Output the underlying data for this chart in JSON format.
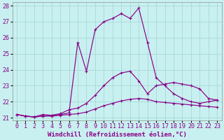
{
  "xlabel": "Windchill (Refroidissement éolien,°C)",
  "ylabel": "",
  "bg_color": "#c8f0f0",
  "grid_color": "#a8d8d8",
  "line_color": "#880088",
  "xlim": [
    -0.5,
    23.5
  ],
  "ylim": [
    20.85,
    28.2
  ],
  "yticks": [
    21,
    22,
    23,
    24,
    25,
    26,
    27,
    28
  ],
  "xticks": [
    0,
    1,
    2,
    3,
    4,
    5,
    6,
    7,
    8,
    9,
    10,
    11,
    12,
    13,
    14,
    15,
    16,
    17,
    18,
    19,
    20,
    21,
    22,
    23
  ],
  "curve1_x": [
    0,
    1,
    2,
    3,
    4,
    5,
    6,
    7,
    8,
    9,
    10,
    11,
    12,
    13,
    14,
    15,
    16,
    17,
    18,
    19,
    20,
    21,
    22,
    23
  ],
  "curve1_y": [
    21.2,
    21.1,
    21.05,
    21.1,
    21.1,
    21.15,
    21.2,
    21.25,
    21.35,
    21.55,
    21.75,
    21.9,
    22.05,
    22.15,
    22.2,
    22.15,
    22.0,
    21.95,
    21.9,
    21.85,
    21.8,
    21.75,
    21.7,
    21.65
  ],
  "curve2_x": [
    0,
    1,
    2,
    3,
    4,
    5,
    6,
    7,
    8,
    9,
    10,
    11,
    12,
    13,
    14,
    15,
    16,
    17,
    18,
    19,
    20,
    21,
    22,
    23
  ],
  "curve2_y": [
    21.2,
    21.1,
    21.05,
    21.2,
    21.15,
    21.25,
    21.5,
    21.6,
    21.9,
    22.4,
    23.0,
    23.5,
    23.8,
    23.9,
    23.3,
    22.5,
    23.0,
    23.1,
    23.2,
    23.1,
    23.0,
    22.8,
    22.2,
    22.1
  ],
  "curve3_x": [
    0,
    1,
    2,
    3,
    4,
    5,
    6,
    7,
    8,
    9,
    10,
    11,
    12,
    13,
    14,
    15,
    16,
    17,
    18,
    19,
    20,
    21,
    22,
    23
  ],
  "curve3_y": [
    21.2,
    21.1,
    21.05,
    21.1,
    21.15,
    21.2,
    21.3,
    25.7,
    23.9,
    26.5,
    27.0,
    27.2,
    27.5,
    27.2,
    27.85,
    25.7,
    23.5,
    23.0,
    22.5,
    22.2,
    22.0,
    21.9,
    22.0,
    22.1
  ],
  "xlabel_fontsize": 6.5,
  "tick_fontsize": 6.0,
  "ylabel_color": "#880088"
}
